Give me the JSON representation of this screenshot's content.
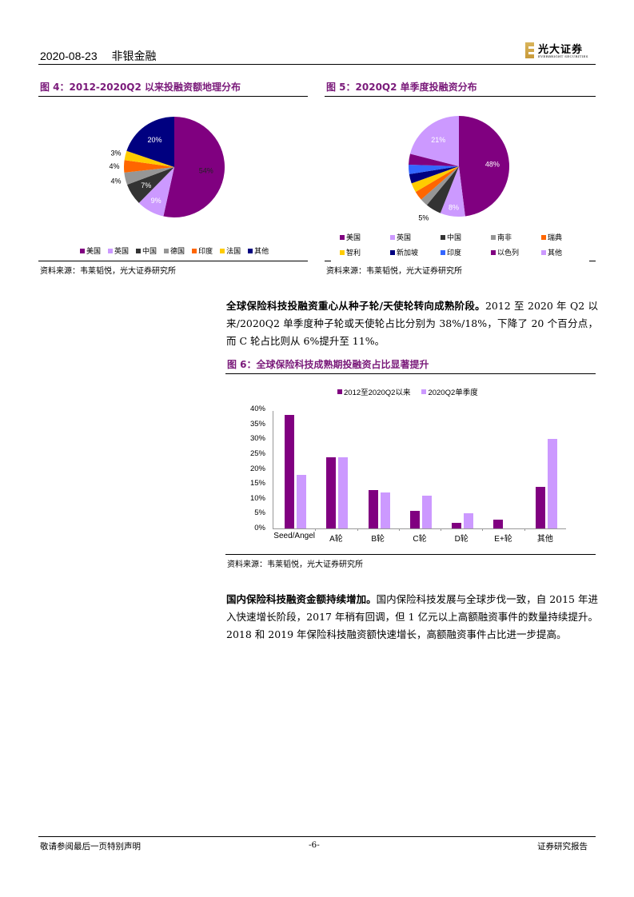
{
  "header": {
    "date": "2020-08-23",
    "sector": "非银金融",
    "logo_cn": "光大证券",
    "logo_en": "EVERBRIGHT SECURITIES"
  },
  "figure4": {
    "title": "图 4：2012-2020Q2 以来投融资额地理分布",
    "source": "资料来源：韦莱韬悦，光大证券研究所",
    "legend": [
      "美国",
      "英国",
      "中国",
      "德国",
      "印度",
      "法国",
      "其他"
    ]
  },
  "figure5": {
    "title": "图 5：2020Q2 单季度投融资分布",
    "source": "资料来源：韦莱韬悦，光大证券研究所",
    "legend": [
      "美国",
      "英国",
      "中国",
      "南非",
      "瑞典",
      "智利",
      "新加坡",
      "印度",
      "以色列",
      "其他"
    ]
  },
  "paragraph1": {
    "bold": "全球保险科技投融资重心从种子轮/天使轮转向成熟阶段。",
    "text": "2012 至 2020 年 Q2 以来/2020Q2 单季度种子轮或天使轮占比分别为 38%/18%，下降了 20 个百分点，而 C 轮占比则从 6%提升至 11%。"
  },
  "figure6": {
    "title": "图 6：全球保险科技成熟期投融资占比显著提升",
    "source": "资料来源：韦莱韬悦，光大证券研究所"
  },
  "paragraph2": {
    "bold": "国内保险科技融资金额持续增加。",
    "text": "国内保险科技发展与全球步伐一致，自 2015 年进入快速增长阶段，2017 年稍有回调，但 1 亿元以上高额融资事件的数量持续提升。2018 和 2019 年保险科技融资额快速增长，高额融资事件占比进一步提高。"
  },
  "footer": {
    "disclaimer": "敬请参阅最后一页特别声明",
    "page": "-6-",
    "doc_type": "证券研究报告"
  },
  "colors": {
    "us": "#800080",
    "uk": "#cc99ff",
    "cn": "#333333",
    "grey": "#969696",
    "orange": "#ff6600",
    "yellow": "#ffcc00",
    "navy": "#000080",
    "blue": "#3366ff",
    "title": "#7a1a7a"
  },
  "chart_data": [
    {
      "type": "pie",
      "title": "图 4：2012-2020Q2 以来投融资额地理分布",
      "categories": [
        "美国",
        "英国",
        "中国",
        "德国",
        "印度",
        "法国",
        "其他"
      ],
      "values": [
        54,
        9,
        7,
        4,
        4,
        3,
        20
      ],
      "labels": [
        "54%",
        "9%",
        "7%",
        "4%",
        "4%",
        "3%",
        "20%"
      ],
      "colors": [
        "#800080",
        "#cc99ff",
        "#333333",
        "#969696",
        "#ff6600",
        "#ffcc00",
        "#000080"
      ],
      "legend_position": "bottom"
    },
    {
      "type": "pie",
      "title": "图 5：2020Q2 单季度投融资分布",
      "categories": [
        "美国",
        "英国",
        "中国",
        "南非",
        "瑞典",
        "智利",
        "新加坡",
        "印度",
        "以色列",
        "其他"
      ],
      "values": [
        48,
        8,
        5,
        2.5,
        3,
        3,
        3,
        3,
        3.5,
        21
      ],
      "labels": [
        "48%",
        "8%",
        "5%",
        "",
        "",
        "",
        "",
        "",
        "",
        "21%"
      ],
      "colors": [
        "#800080",
        "#cc99ff",
        "#333333",
        "#969696",
        "#ff6600",
        "#ffcc00",
        "#000080",
        "#3366ff",
        "#800080",
        "#cc99ff"
      ],
      "legend_position": "bottom"
    },
    {
      "type": "bar",
      "title": "图 6：全球保险科技成熟期投融资占比显著提升",
      "categories": [
        "Seed/Angel",
        "A轮",
        "B轮",
        "C轮",
        "D轮",
        "E+轮",
        "其他"
      ],
      "series": [
        {
          "name": "2012至2020Q2以来",
          "values": [
            38,
            24,
            13,
            6,
            2,
            3,
            14
          ],
          "color": "#800080"
        },
        {
          "name": "2020Q2单季度",
          "values": [
            18,
            24,
            12,
            11,
            5,
            0,
            30
          ],
          "color": "#cc99ff"
        }
      ],
      "yticks": [
        "0%",
        "5%",
        "10%",
        "15%",
        "20%",
        "25%",
        "30%",
        "35%",
        "40%"
      ],
      "ylim": [
        0,
        40
      ],
      "xlabel": "",
      "ylabel": "",
      "grid": false,
      "legend_position": "top"
    }
  ]
}
